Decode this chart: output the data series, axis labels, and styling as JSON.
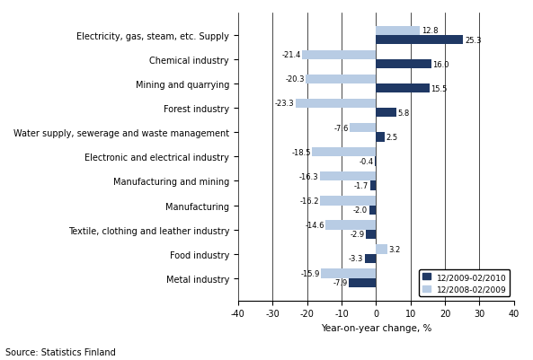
{
  "categories": [
    "Electricity, gas, steam, etc. Supply",
    "Chemical industry",
    "Mining and quarrying",
    "Forest industry",
    "Water supply, sewerage and waste management",
    "Electronic and electrical industry",
    "Manufacturing and mining",
    "Manufacturing",
    "Textile, clothing and leather industry",
    "Food industry",
    "Metal industry"
  ],
  "series_current": [
    25.3,
    16.0,
    15.5,
    5.8,
    2.5,
    -0.4,
    -1.7,
    -2.0,
    -2.9,
    -3.3,
    -7.9
  ],
  "series_prev": [
    12.8,
    -21.4,
    -20.3,
    -23.3,
    -7.6,
    -18.5,
    -16.3,
    -16.2,
    -14.6,
    3.2,
    -15.9
  ],
  "color_current": "#1F3864",
  "color_prev": "#B8CCE4",
  "legend_current": "12/2009-02/2010",
  "legend_prev": "12/2008-02/2009",
  "xlabel": "Year-on-year change, %",
  "source": "Source: Statistics Finland",
  "xlim": [
    -40,
    40
  ],
  "xticks": [
    -40,
    -30,
    -20,
    -10,
    0,
    10,
    20,
    30,
    40
  ],
  "bar_height": 0.38,
  "label_fontsize": 6.0,
  "tick_fontsize": 7.0,
  "xlabel_fontsize": 7.5
}
